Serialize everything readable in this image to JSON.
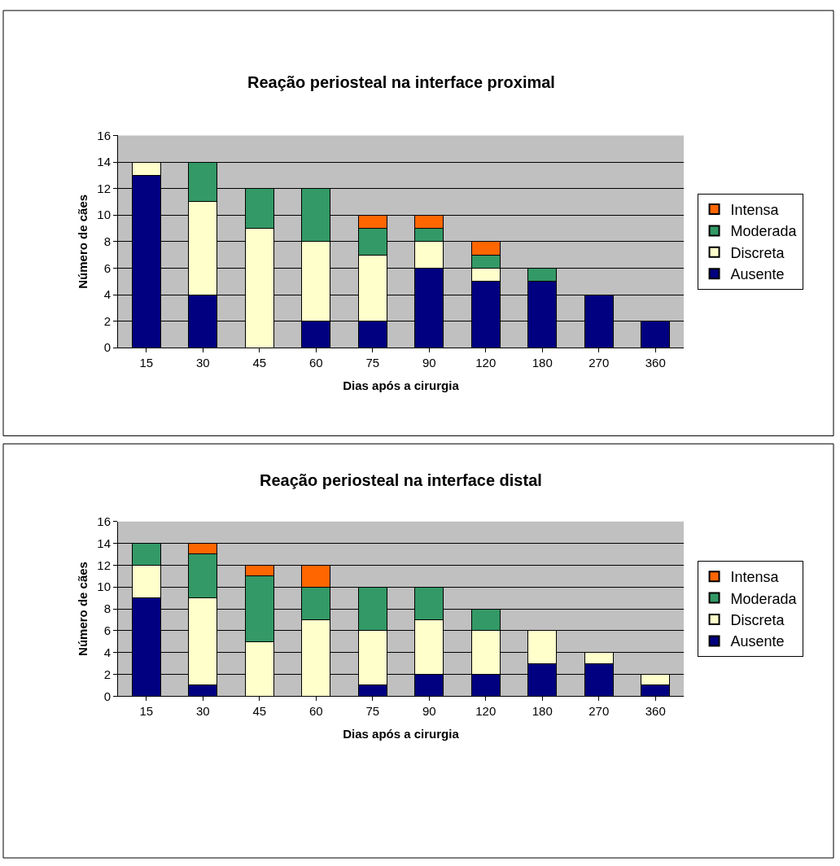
{
  "chart_data": [
    {
      "type": "bar",
      "title": "Reação periosteal na interface proximal",
      "xlabel": "Dias após a cirurgia",
      "ylabel": "Número de cães",
      "categories": [
        "15",
        "30",
        "45",
        "60",
        "75",
        "90",
        "120",
        "180",
        "270",
        "360"
      ],
      "stacked": true,
      "ylim": [
        0,
        16
      ],
      "yticks": [
        0,
        2,
        4,
        6,
        8,
        10,
        12,
        14,
        16
      ],
      "grid": "y",
      "legend": "right",
      "series": [
        {
          "name": "Ausente",
          "color": "#000080",
          "values": [
            13,
            4,
            0,
            2,
            2,
            6,
            5,
            5,
            4,
            2
          ]
        },
        {
          "name": "Discreta",
          "color": "#ffffcc",
          "values": [
            1,
            7,
            9,
            6,
            5,
            2,
            1,
            0,
            0,
            0
          ]
        },
        {
          "name": "Moderada",
          "color": "#339966",
          "values": [
            0,
            3,
            3,
            4,
            2,
            1,
            1,
            1,
            0,
            0
          ]
        },
        {
          "name": "Intensa",
          "color": "#ff6600",
          "values": [
            0,
            0,
            0,
            0,
            1,
            1,
            1,
            0,
            0,
            0
          ]
        }
      ]
    },
    {
      "type": "bar",
      "title": "Reação periosteal na interface distal",
      "xlabel": "Dias após a cirurgia",
      "ylabel": "Número de cães",
      "categories": [
        "15",
        "30",
        "45",
        "60",
        "75",
        "90",
        "120",
        "180",
        "270",
        "360"
      ],
      "stacked": true,
      "ylim": [
        0,
        16
      ],
      "yticks": [
        0,
        2,
        4,
        6,
        8,
        10,
        12,
        14,
        16
      ],
      "grid": "y",
      "legend": "right",
      "series": [
        {
          "name": "Ausente",
          "color": "#000080",
          "values": [
            9,
            1,
            0,
            0,
            1,
            2,
            2,
            3,
            3,
            1
          ]
        },
        {
          "name": "Discreta",
          "color": "#ffffcc",
          "values": [
            3,
            8,
            5,
            7,
            5,
            5,
            4,
            3,
            1,
            1
          ]
        },
        {
          "name": "Moderada",
          "color": "#339966",
          "values": [
            2,
            4,
            6,
            3,
            4,
            3,
            2,
            0,
            0,
            0
          ]
        },
        {
          "name": "Intensa",
          "color": "#ff6600",
          "values": [
            0,
            1,
            1,
            2,
            0,
            0,
            0,
            0,
            0,
            0
          ]
        }
      ]
    }
  ]
}
